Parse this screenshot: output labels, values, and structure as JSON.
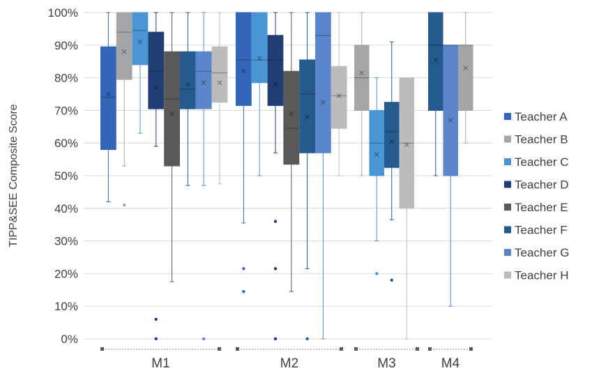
{
  "chart_data": {
    "type": "boxplot",
    "ylabel": "TIPP&SEE Composite Score",
    "ylim": [
      0,
      100
    ],
    "y_ticks": [
      "0%",
      "10%",
      "20%",
      "30%",
      "40%",
      "50%",
      "60%",
      "70%",
      "80%",
      "90%",
      "100%"
    ],
    "categories": [
      "M1",
      "M2",
      "M3",
      "M4"
    ],
    "legend_position": "right",
    "grid": true,
    "series_names": [
      "Teacher A",
      "Teacher B",
      "Teacher C",
      "Teacher D",
      "Teacher E",
      "Teacher F",
      "Teacher G",
      "Teacher H"
    ],
    "colors": [
      "#3366bb",
      "#a5a5a5",
      "#4a96d4",
      "#203e74",
      "#595959",
      "#245a8e",
      "#5b86cc",
      "#bcbcbc"
    ],
    "groups": [
      {
        "category": "M1",
        "boxes": [
          {
            "teacher": "Teacher A",
            "min": 42,
            "q1": 58,
            "median": 74,
            "mean": 75,
            "q3": 89.5,
            "max": 100,
            "outliers": []
          },
          {
            "teacher": "Teacher B",
            "min": 53,
            "q1": 79.5,
            "median": 94,
            "mean": 88,
            "q3": 100,
            "max": 100,
            "outliers": [
              41
            ]
          },
          {
            "teacher": "Teacher C",
            "min": 63,
            "q1": 84,
            "median": 94.5,
            "mean": 91,
            "q3": 100,
            "max": 100,
            "outliers": []
          },
          {
            "teacher": "Teacher D",
            "min": 59,
            "q1": 70.5,
            "median": 82,
            "mean": 77,
            "q3": 94,
            "max": 100,
            "outliers": [
              6,
              0
            ]
          },
          {
            "teacher": "Teacher E",
            "min": 17.5,
            "q1": 53,
            "median": 73.5,
            "mean": 69,
            "q3": 88,
            "max": 100,
            "outliers": []
          },
          {
            "teacher": "Teacher F",
            "min": 47,
            "q1": 70.5,
            "median": 76.5,
            "mean": 78,
            "q3": 88,
            "max": 100,
            "outliers": []
          },
          {
            "teacher": "Teacher G",
            "min": 47,
            "q1": 70.5,
            "median": 82,
            "mean": 78.5,
            "q3": 88,
            "max": 100,
            "outliers": [
              0
            ]
          },
          {
            "teacher": "Teacher H",
            "min": 47.5,
            "q1": 72.5,
            "median": 81.5,
            "mean": 78.5,
            "q3": 89.5,
            "max": 100,
            "outliers": []
          }
        ]
      },
      {
        "category": "M2",
        "boxes": [
          {
            "teacher": "Teacher A",
            "min": 35.5,
            "q1": 71.5,
            "median": 85.5,
            "mean": 82,
            "q3": 100,
            "max": 100,
            "outliers": [
              21.5,
              14.5
            ]
          },
          {
            "teacher": "Teacher C",
            "min": 50,
            "q1": 78.5,
            "median": 85.5,
            "mean": 86,
            "q3": 100,
            "max": 100,
            "outliers": []
          },
          {
            "teacher": "Teacher D",
            "min": 57,
            "q1": 71.5,
            "median": 85.5,
            "mean": 78,
            "q3": 93,
            "max": 100,
            "outliers": [
              36,
              21.5,
              0
            ]
          },
          {
            "teacher": "Teacher E",
            "min": 14.5,
            "q1": 53.5,
            "median": 64.5,
            "mean": 69,
            "q3": 82,
            "max": 100,
            "outliers": []
          },
          {
            "teacher": "Teacher F",
            "min": 21.5,
            "q1": 57,
            "median": 75,
            "mean": 68,
            "q3": 85.5,
            "max": 100,
            "outliers": [
              0
            ]
          },
          {
            "teacher": "Teacher G",
            "min": 0,
            "q1": 57,
            "median": 93,
            "mean": 72.5,
            "q3": 100,
            "max": 100,
            "outliers": []
          },
          {
            "teacher": "Teacher H",
            "min": 50,
            "q1": 64.5,
            "median": 74.5,
            "mean": 74.5,
            "q3": 83.5,
            "max": 100,
            "outliers": []
          }
        ]
      },
      {
        "category": "M3",
        "boxes": [
          {
            "teacher": "Teacher B",
            "min": 50,
            "q1": 70,
            "median": 80,
            "mean": 81.5,
            "q3": 90,
            "max": 100,
            "outliers": []
          },
          {
            "teacher": "Teacher C",
            "min": 30,
            "q1": 50,
            "median": 60,
            "mean": 56.5,
            "q3": 70,
            "max": 80,
            "outliers": [
              20
            ]
          },
          {
            "teacher": "Teacher F",
            "min": 36.5,
            "q1": 52.5,
            "median": 63.5,
            "mean": 60.5,
            "q3": 72.5,
            "max": 91,
            "outliers": [
              18
            ]
          },
          {
            "teacher": "Teacher H",
            "min": 0,
            "q1": 40,
            "median": 60,
            "mean": 59.5,
            "q3": 80,
            "max": 80,
            "outliers": []
          }
        ]
      },
      {
        "category": "M4",
        "boxes": [
          {
            "teacher": "Teacher F",
            "min": 50,
            "q1": 70,
            "median": 90,
            "mean": 85.5,
            "q3": 100,
            "max": 100,
            "outliers": []
          },
          {
            "teacher": "Teacher G",
            "min": 10,
            "q1": 50,
            "median": 90,
            "mean": 67,
            "q3": 90,
            "max": 90,
            "outliers": []
          },
          {
            "teacher": "Teacher B",
            "min": 60,
            "q1": 70,
            "median": 90,
            "mean": 83,
            "q3": 90,
            "max": 100,
            "outliers": []
          }
        ]
      }
    ]
  }
}
